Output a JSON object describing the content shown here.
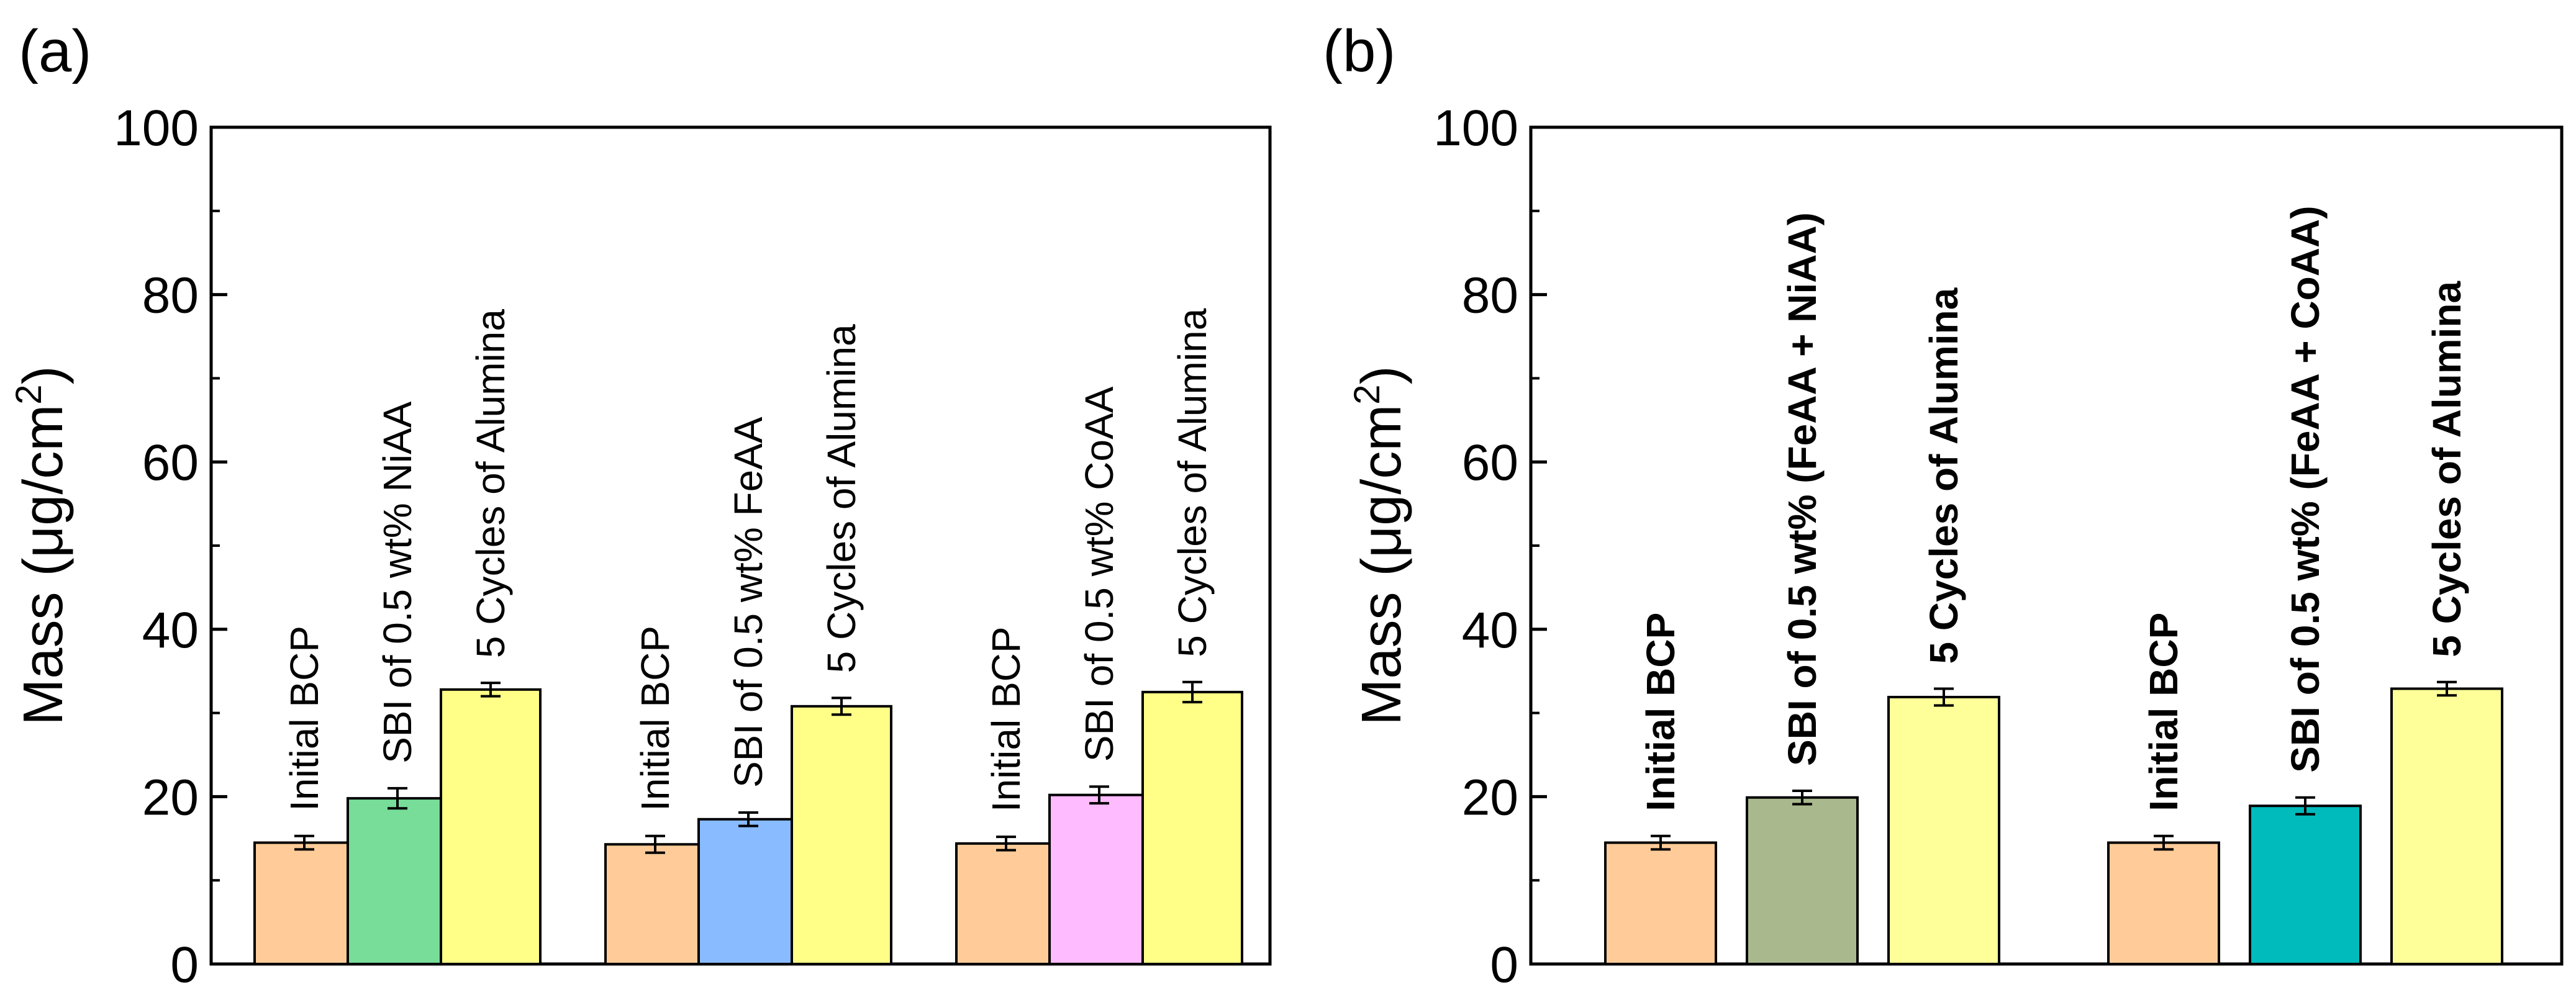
{
  "chart_data": [
    {
      "panel_label": "(a)",
      "type": "bar",
      "ylabel_prefix": "Mass (μg/cm",
      "ylabel_sup": "2",
      "ylabel_suffix": ")",
      "ylim": [
        0,
        100
      ],
      "yticks": [
        "0",
        "20",
        "40",
        "60",
        "80",
        "100"
      ],
      "grid": false,
      "label_weight": "normal",
      "groups": [
        {
          "bars": [
            {
              "label": "Initial BCP",
              "value": 14.5,
              "error": 0.8,
              "color": "#FFCC99"
            },
            {
              "label": "SBI of 0.5 wt% NiAA",
              "value": 19.8,
              "error": 1.2,
              "color": "#77DD99"
            },
            {
              "label": "5 Cycles of Alumina",
              "value": 32.8,
              "error": 0.8,
              "color": "#FFFF88"
            }
          ]
        },
        {
          "bars": [
            {
              "label": "Initial BCP",
              "value": 14.3,
              "error": 1.0,
              "color": "#FFCC99"
            },
            {
              "label": "SBI of 0.5 wt% FeAA",
              "value": 17.3,
              "error": 0.8,
              "color": "#88BBFF"
            },
            {
              "label": "5 Cycles of Alumina",
              "value": 30.8,
              "error": 1.0,
              "color": "#FFFF88"
            }
          ]
        },
        {
          "bars": [
            {
              "label": "Initial BCP",
              "value": 14.4,
              "error": 0.8,
              "color": "#FFCC99"
            },
            {
              "label": "SBI of 0.5 wt% CoAA",
              "value": 20.2,
              "error": 1.0,
              "color": "#FFBBFF"
            },
            {
              "label": "5 Cycles of Alumina",
              "value": 32.5,
              "error": 1.2,
              "color": "#FFFF88"
            }
          ]
        }
      ]
    },
    {
      "panel_label": "(b)",
      "type": "bar",
      "ylabel_prefix": "Mass (μg/cm",
      "ylabel_sup": "2",
      "ylabel_suffix": ")",
      "ylim": [
        0,
        100
      ],
      "yticks": [
        "0",
        "20",
        "40",
        "60",
        "80",
        "100"
      ],
      "grid": false,
      "label_weight": "bold",
      "groups": [
        {
          "bars": [
            {
              "label": "Initial BCP",
              "value": 14.5,
              "error": 0.8,
              "color": "#FFCC99"
            },
            {
              "label": "SBI of 0.5 wt% (FeAA + NiAA)",
              "value": 19.9,
              "error": 0.8,
              "color": "#AAB88E"
            },
            {
              "label": "5 Cycles of Alumina",
              "value": 31.9,
              "error": 1.0,
              "color": "#FFFF99"
            }
          ]
        },
        {
          "bars": [
            {
              "label": "Initial BCP",
              "value": 14.5,
              "error": 0.8,
              "color": "#FFCC99"
            },
            {
              "label": "SBI of 0.5 wt% (FeAA + CoAA)",
              "value": 18.9,
              "error": 1.0,
              "color": "#00BBBB"
            },
            {
              "label": "5 Cycles of Alumina",
              "value": 32.9,
              "error": 0.8,
              "color": "#FFFF99"
            }
          ]
        }
      ]
    }
  ]
}
